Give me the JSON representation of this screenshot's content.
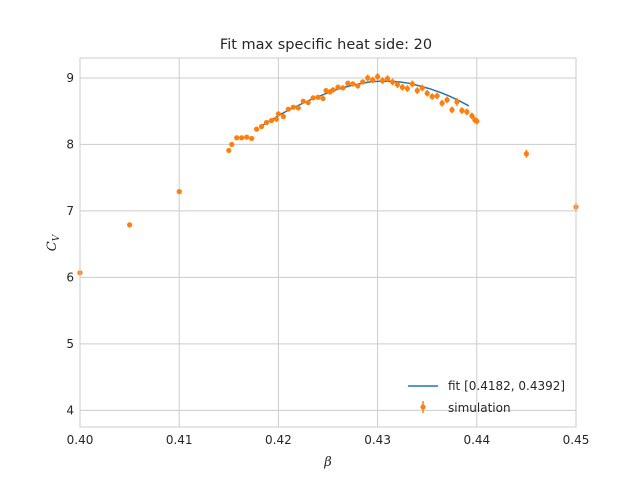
{
  "chart_data": {
    "type": "scatter",
    "title": "Fit max specific heat side: 20",
    "xlabel": "β",
    "ylabel": "C_V",
    "xlim": [
      0.4,
      0.45
    ],
    "ylim": [
      3.75,
      9.3
    ],
    "xticks": [
      0.4,
      0.41,
      0.42,
      0.43,
      0.44,
      0.45
    ],
    "xtick_labels": [
      "0.40",
      "0.41",
      "0.42",
      "0.43",
      "0.44",
      "0.45"
    ],
    "yticks": [
      4,
      5,
      6,
      7,
      8,
      9
    ],
    "ytick_labels": [
      "4",
      "5",
      "6",
      "7",
      "8",
      "9"
    ],
    "grid": true,
    "legend_position": "lower right",
    "colors": {
      "fit": "#1f77b4",
      "simulation": "#ff7f0e",
      "grid": "#cccccc",
      "spine": "#cccccc"
    },
    "series": [
      {
        "name": "fit [0.4182, 0.4392]",
        "kind": "line",
        "x": [
          0.4182,
          0.4192,
          0.4202,
          0.4212,
          0.4222,
          0.4232,
          0.4242,
          0.4252,
          0.4262,
          0.4272,
          0.4282,
          0.4292,
          0.4302,
          0.4312,
          0.4322,
          0.4332,
          0.4342,
          0.4352,
          0.4362,
          0.4372,
          0.4382,
          0.4392
        ],
        "y": [
          8.27,
          8.36,
          8.45,
          8.53,
          8.6,
          8.67,
          8.73,
          8.79,
          8.84,
          8.88,
          8.91,
          8.94,
          8.95,
          8.95,
          8.94,
          8.92,
          8.88,
          8.84,
          8.79,
          8.73,
          8.66,
          8.58
        ]
      },
      {
        "name": "simulation",
        "kind": "errorbar",
        "x": [
          0.4,
          0.405,
          0.41,
          0.415,
          0.4153,
          0.4158,
          0.4163,
          0.4168,
          0.4173,
          0.4178,
          0.4183,
          0.4188,
          0.4193,
          0.4198,
          0.42,
          0.4205,
          0.421,
          0.4215,
          0.422,
          0.4225,
          0.423,
          0.4235,
          0.424,
          0.4245,
          0.4248,
          0.4252,
          0.4255,
          0.426,
          0.4265,
          0.427,
          0.4275,
          0.428,
          0.4285,
          0.429,
          0.4295,
          0.43,
          0.4305,
          0.431,
          0.4315,
          0.432,
          0.4325,
          0.433,
          0.4335,
          0.434,
          0.4345,
          0.435,
          0.4355,
          0.436,
          0.4365,
          0.437,
          0.4375,
          0.438,
          0.4385,
          0.439,
          0.4395,
          0.4398,
          0.44,
          0.445,
          0.45
        ],
        "y": [
          6.07,
          6.79,
          7.29,
          7.91,
          8.0,
          8.1,
          8.1,
          8.11,
          8.09,
          8.23,
          8.27,
          8.33,
          8.36,
          8.38,
          8.46,
          8.42,
          8.53,
          8.56,
          8.55,
          8.65,
          8.63,
          8.7,
          8.71,
          8.69,
          8.81,
          8.79,
          8.82,
          8.86,
          8.85,
          8.92,
          8.91,
          8.88,
          8.94,
          9.0,
          8.97,
          9.02,
          8.96,
          8.99,
          8.94,
          8.9,
          8.86,
          8.84,
          8.91,
          8.81,
          8.85,
          8.77,
          8.72,
          8.73,
          8.62,
          8.67,
          8.52,
          8.64,
          8.51,
          8.49,
          8.43,
          8.37,
          8.35,
          7.86,
          7.06
        ],
        "err": [
          0.03,
          0.03,
          0.03,
          0.03,
          0.03,
          0.03,
          0.03,
          0.03,
          0.03,
          0.03,
          0.03,
          0.03,
          0.03,
          0.03,
          0.03,
          0.03,
          0.03,
          0.03,
          0.03,
          0.03,
          0.03,
          0.03,
          0.03,
          0.03,
          0.04,
          0.04,
          0.04,
          0.04,
          0.04,
          0.04,
          0.04,
          0.04,
          0.04,
          0.05,
          0.05,
          0.05,
          0.05,
          0.05,
          0.05,
          0.05,
          0.05,
          0.05,
          0.05,
          0.05,
          0.05,
          0.05,
          0.05,
          0.05,
          0.05,
          0.05,
          0.05,
          0.06,
          0.05,
          0.05,
          0.05,
          0.05,
          0.05,
          0.06,
          0.07
        ]
      }
    ]
  }
}
